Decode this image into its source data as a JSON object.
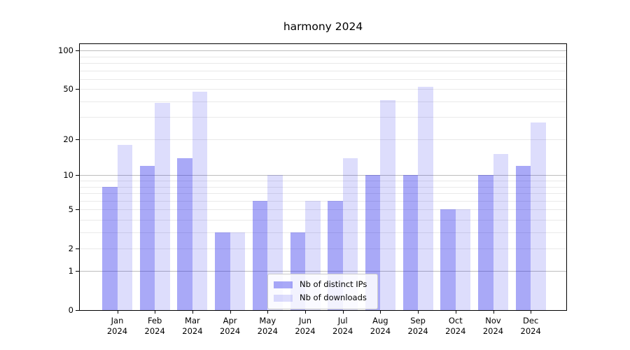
{
  "chart_data": {
    "type": "bar",
    "title": "harmony 2024",
    "categories": [
      "Jan",
      "Feb",
      "Mar",
      "Apr",
      "May",
      "Jun",
      "Jul",
      "Aug",
      "Sep",
      "Oct",
      "Nov",
      "Dec"
    ],
    "x_tick_year_line": "2024",
    "series": [
      {
        "name": "Nb of distinct IPs",
        "values": [
          8,
          12,
          14,
          3,
          6,
          3,
          6,
          10,
          10,
          5,
          10,
          12
        ],
        "color": "rgba(30,30,235,0.38)"
      },
      {
        "name": "Nb of downloads",
        "values": [
          18,
          39,
          48,
          3,
          10,
          6,
          14,
          41,
          52,
          5,
          15,
          27
        ],
        "color": "rgba(30,30,235,0.15)"
      }
    ],
    "xlabel": "",
    "ylabel": "",
    "yscale": "symlog (rendered as log1p)",
    "ylim": [
      0,
      112.6
    ],
    "yticks": [
      100,
      50,
      20,
      10,
      5,
      2,
      1,
      0
    ],
    "grid": "both",
    "grid_major": [
      1,
      10,
      100
    ],
    "grid_minor": [
      2,
      3,
      4,
      5,
      6,
      7,
      8,
      9,
      20,
      30,
      40,
      50,
      60,
      70,
      80,
      90
    ],
    "legend_position": "lower center",
    "colors": {
      "background": "#ffffff",
      "spine": "#000000",
      "grid_major": "#bdbdbd",
      "grid_minor": "#e9e9e9",
      "legend_border": "#cccccc",
      "text": "#000000"
    }
  }
}
